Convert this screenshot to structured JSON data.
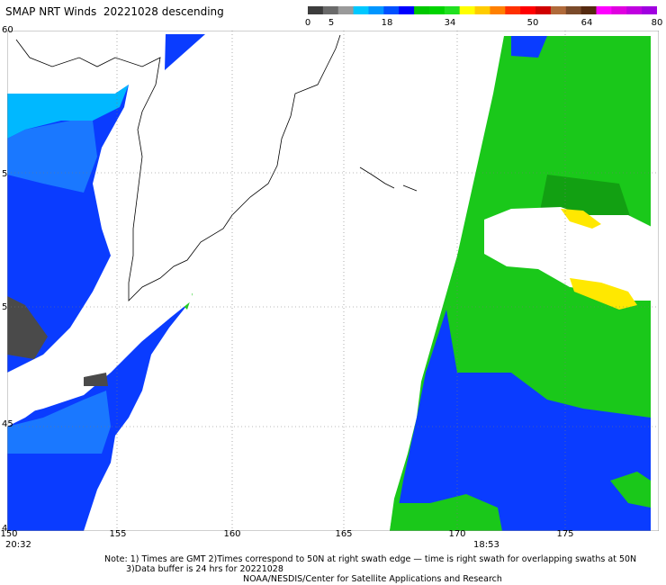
{
  "header": {
    "title": "SMAP NRT Winds  20221028 descending"
  },
  "colorbar": {
    "ticks": [
      "0",
      "5",
      "18",
      "34",
      "50",
      "64",
      "80"
    ],
    "colors": [
      "#3c3c3c",
      "#6a6a6a",
      "#9a9a9a",
      "#00c8ff",
      "#0096ff",
      "#0050ff",
      "#0000ff",
      "#00c800",
      "#00d400",
      "#20e020",
      "#ffff00",
      "#ffcc00",
      "#ff8000",
      "#ff3000",
      "#ff0000",
      "#d00000",
      "#b06a3a",
      "#7a4a2a",
      "#552a10",
      "#ff00ff",
      "#e000e0",
      "#c000e0",
      "#a000e0"
    ]
  },
  "axes": {
    "lat_labels": [
      "60",
      "5",
      "5",
      "45",
      "4"
    ],
    "lon_labels": [
      "150",
      "155",
      "160",
      "165",
      "170",
      "175"
    ]
  },
  "times": {
    "left": "20:32",
    "right": "18:53"
  },
  "notes": {
    "line1": "Note: 1) Times are GMT 2)Times correspond to 50N at right swath edge — time is right swath for overlapping swaths at 50N",
    "line2": "3)Data buffer is 24 hrs for 20221028",
    "line3": "NOAA/NESDIS/Center for Satellite Applications and Research"
  }
}
